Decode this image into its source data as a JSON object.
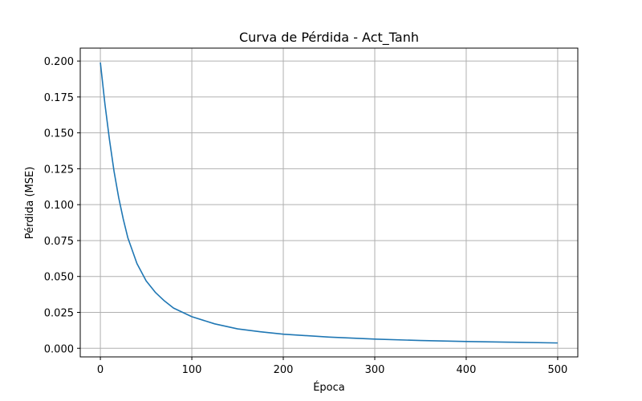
{
  "chart_data": {
    "type": "line",
    "title": "Curva de Pérdida - Act_Tanh",
    "xlabel": "Época",
    "ylabel": "Pérdida (MSE)",
    "xlim": [
      -22,
      522
    ],
    "ylim": [
      -0.006,
      0.209
    ],
    "xticks": [
      0,
      100,
      200,
      300,
      400,
      500
    ],
    "yticks": [
      0.0,
      0.025,
      0.05,
      0.075,
      0.1,
      0.125,
      0.15,
      0.175,
      0.2
    ],
    "xtick_labels": [
      "0",
      "100",
      "200",
      "300",
      "400",
      "500"
    ],
    "ytick_labels": [
      "0.000",
      "0.025",
      "0.050",
      "0.075",
      "0.100",
      "0.125",
      "0.150",
      "0.175",
      "0.200"
    ],
    "grid": true,
    "color": "#1f77b4",
    "series": [
      {
        "x": [
          0,
          5,
          10,
          15,
          20,
          25,
          30,
          40,
          50,
          60,
          70,
          80,
          90,
          100,
          125,
          150,
          175,
          200,
          250,
          300,
          350,
          400,
          450,
          500
        ],
        "values": [
          0.199,
          0.17,
          0.145,
          0.123,
          0.105,
          0.09,
          0.077,
          0.059,
          0.047,
          0.039,
          0.033,
          0.028,
          0.025,
          0.022,
          0.017,
          0.0135,
          0.0115,
          0.0098,
          0.0078,
          0.0064,
          0.0054,
          0.0047,
          0.0042,
          0.0037
        ]
      }
    ]
  }
}
